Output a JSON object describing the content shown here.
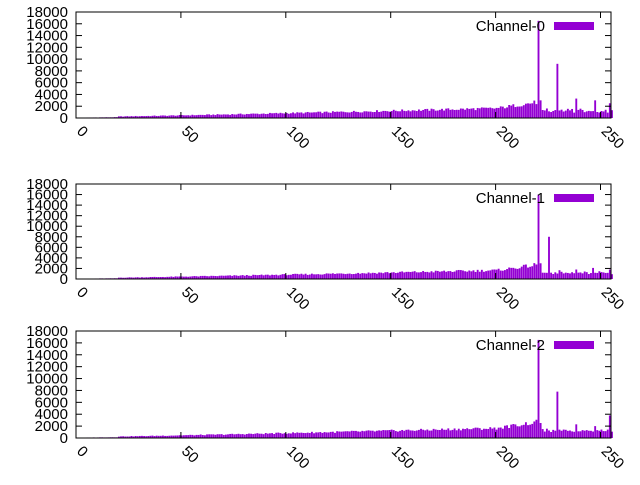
{
  "chart_data": [
    {
      "type": "bar",
      "series": [
        {
          "name": "Channel-0",
          "color": "#9400d3",
          "peaks": [
            [
              220,
              16500
            ],
            [
              229,
              9200
            ],
            [
              238,
              3300
            ],
            [
              247,
              3000
            ],
            [
              254,
              2500
            ]
          ]
        }
      ],
      "xlim": [
        0,
        255
      ],
      "ylim": [
        0,
        18000
      ],
      "xticks": [
        "0",
        "50",
        "100",
        "150",
        "200",
        "250"
      ],
      "yticks": [
        "0",
        "2000",
        "4000",
        "6000",
        "8000",
        "10000",
        "12000",
        "14000",
        "16000",
        "18000"
      ],
      "legend_position": "top-right",
      "grid": false
    },
    {
      "type": "bar",
      "series": [
        {
          "name": "Channel-1",
          "color": "#9400d3",
          "peaks": [
            [
              220,
              16000
            ],
            [
              225,
              8000
            ],
            [
              238,
              1800
            ],
            [
              246,
              2100
            ],
            [
              254,
              1800
            ]
          ]
        }
      ],
      "xlim": [
        0,
        255
      ],
      "ylim": [
        0,
        18000
      ],
      "xticks": [
        "0",
        "50",
        "100",
        "150",
        "200",
        "250"
      ],
      "yticks": [
        "0",
        "2000",
        "4000",
        "6000",
        "8000",
        "10000",
        "12000",
        "14000",
        "16000",
        "18000"
      ],
      "legend_position": "top-right",
      "grid": false
    },
    {
      "type": "bar",
      "series": [
        {
          "name": "Channel-2",
          "color": "#9400d3",
          "peaks": [
            [
              220,
              16500
            ],
            [
              229,
              7800
            ],
            [
              238,
              2300
            ],
            [
              247,
              2000
            ],
            [
              254,
              3800
            ]
          ]
        }
      ],
      "xlim": [
        0,
        255
      ],
      "ylim": [
        0,
        18000
      ],
      "xticks": [
        "0",
        "50",
        "100",
        "150",
        "200",
        "250"
      ],
      "yticks": [
        "0",
        "2000",
        "4000",
        "6000",
        "8000",
        "10000",
        "12000",
        "14000",
        "16000",
        "18000"
      ],
      "legend_position": "top-right",
      "grid": false
    }
  ]
}
